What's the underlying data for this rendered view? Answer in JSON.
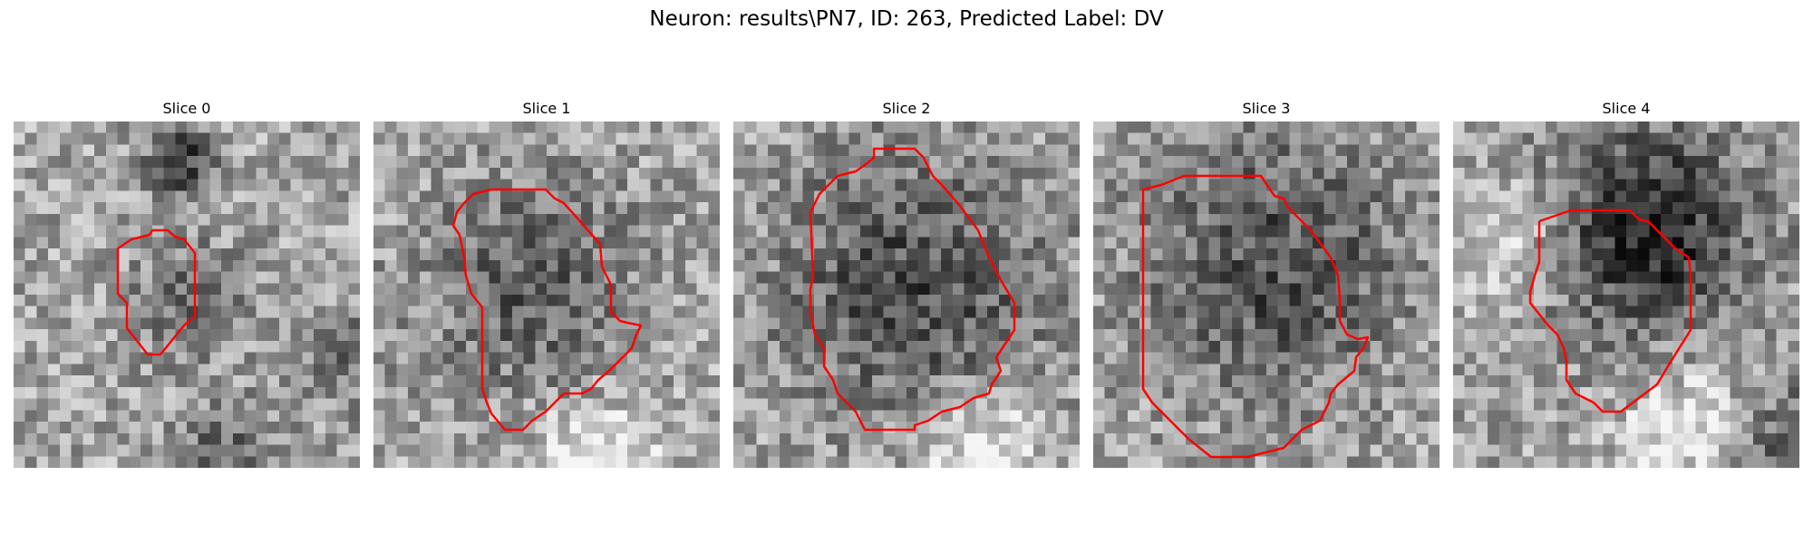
{
  "figure": {
    "title": "Neuron: results\\PN7, ID: 263, Predicted Label: DV"
  },
  "colors": {
    "contour": "#ff0000",
    "colormap": "gray"
  },
  "slices": [
    {
      "title": "Slice 0"
    },
    {
      "title": "Slice 1"
    },
    {
      "title": "Slice 2"
    },
    {
      "title": "Slice 3"
    },
    {
      "title": "Slice 4"
    }
  ]
}
